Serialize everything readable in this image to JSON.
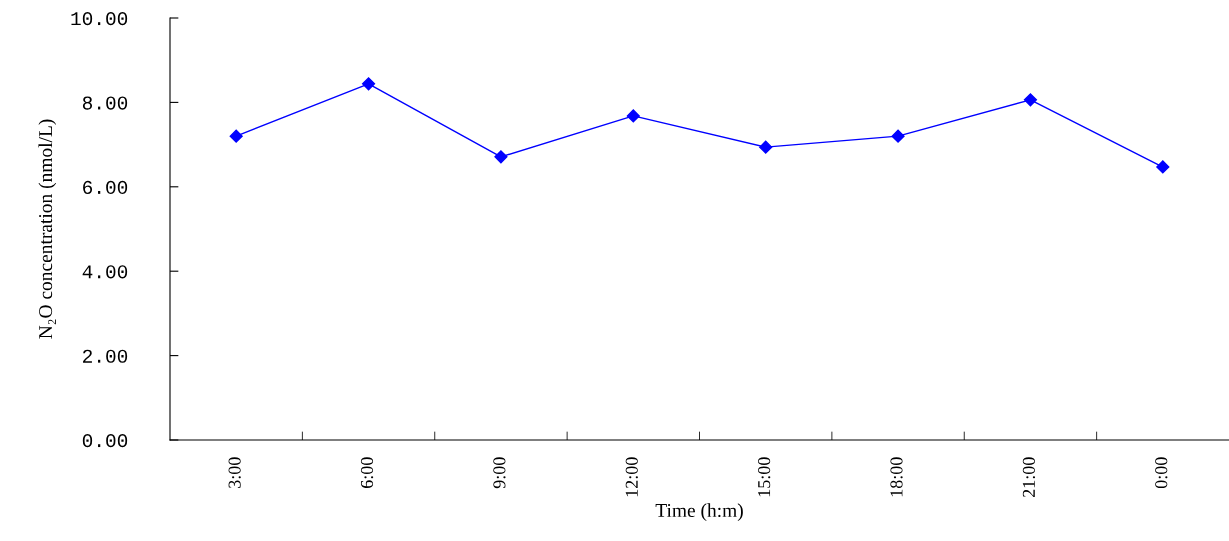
{
  "chart_data": {
    "type": "line",
    "xlabel": "Time (h:m)",
    "ylabel": "N₂O concentration (nmol/L)",
    "categories": [
      "3:00",
      "6:00",
      "9:00",
      "12:00",
      "15:00",
      "18:00",
      "21:00",
      "0:00"
    ],
    "series": [
      {
        "color": "#0000ff",
        "values": [
          7.2,
          8.44,
          6.71,
          7.68,
          6.94,
          7.2,
          8.06,
          6.47
        ]
      }
    ],
    "ylim": [
      0,
      10
    ],
    "yticks": [
      {
        "value": 0,
        "label": "0.00"
      },
      {
        "value": 2,
        "label": "2.00"
      },
      {
        "value": 4,
        "label": "4.00"
      },
      {
        "value": 6,
        "label": "6.00"
      },
      {
        "value": 8,
        "label": "8.00"
      },
      {
        "value": 10,
        "label": "10.00"
      }
    ],
    "marker": "diamond",
    "line_style": "solid",
    "grid": false,
    "legend": false
  }
}
